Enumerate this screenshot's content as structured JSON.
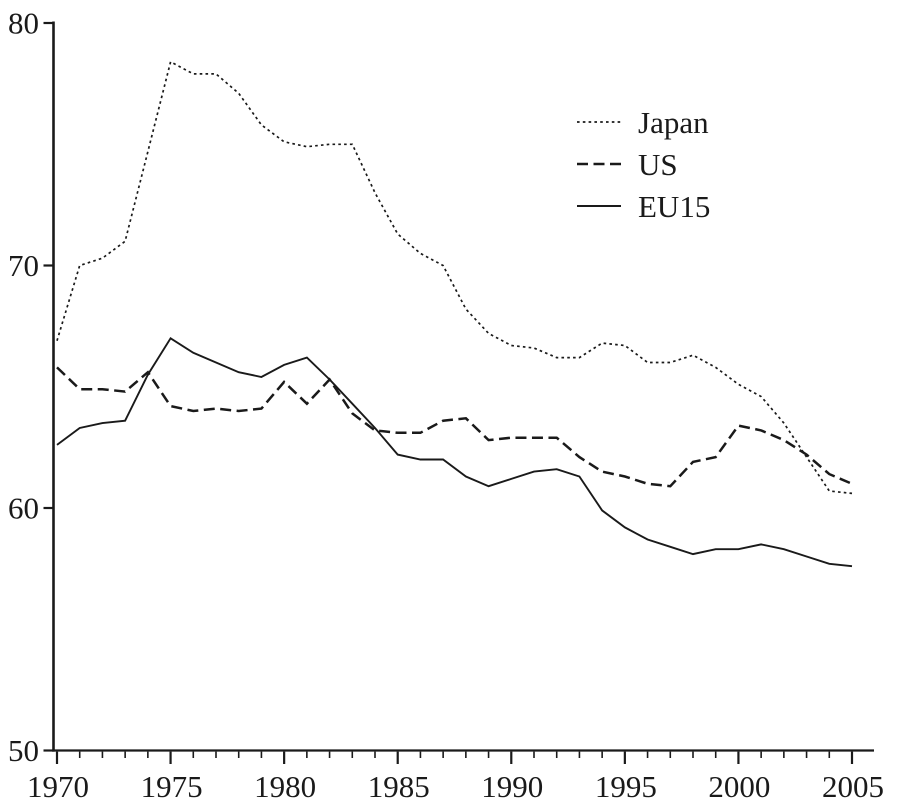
{
  "figure": {
    "background_color": "#ffffff",
    "ink_color": "#1a1a1a"
  },
  "chart_data": {
    "type": "line",
    "title": "",
    "xlabel": "",
    "ylabel": "",
    "grid": false,
    "legend_position": "upper-right-inside",
    "xlim": [
      1970,
      2005
    ],
    "ylim": [
      50,
      80
    ],
    "y_ticks": [
      50,
      60,
      70,
      80
    ],
    "y_tick_labels": [
      "50",
      "60",
      "70",
      "80"
    ],
    "x_major_ticks": [
      1970,
      1975,
      1980,
      1985,
      1990,
      1995,
      2000,
      2005
    ],
    "x_tick_labels": [
      "1970",
      "1975",
      "1980",
      "1985",
      "1990",
      "1995",
      "2000",
      "2005"
    ],
    "x": [
      1970,
      1971,
      1972,
      1973,
      1974,
      1975,
      1976,
      1977,
      1978,
      1979,
      1980,
      1981,
      1982,
      1983,
      1984,
      1985,
      1986,
      1987,
      1988,
      1989,
      1990,
      1991,
      1992,
      1993,
      1994,
      1995,
      1996,
      1997,
      1998,
      1999,
      2000,
      2001,
      2002,
      2003,
      2004,
      2005
    ],
    "series": [
      {
        "name": "Japan",
        "line_style": "dotted",
        "color": "#1a1a1a",
        "values": [
          66.9,
          70.0,
          70.3,
          71.0,
          74.7,
          78.4,
          77.9,
          77.9,
          77.1,
          75.8,
          75.1,
          74.9,
          75.0,
          75.0,
          73.0,
          71.3,
          70.5,
          70.0,
          68.2,
          67.2,
          66.7,
          66.6,
          66.2,
          66.2,
          66.8,
          66.7,
          66.0,
          66.0,
          66.3,
          65.8,
          65.1,
          64.6,
          63.5,
          62.1,
          60.7,
          60.6
        ]
      },
      {
        "name": "US",
        "line_style": "dashed",
        "color": "#1a1a1a",
        "values": [
          65.8,
          64.9,
          64.9,
          64.8,
          65.6,
          64.2,
          64.0,
          64.1,
          64.0,
          64.1,
          65.2,
          64.3,
          65.3,
          63.9,
          63.2,
          63.1,
          63.1,
          63.6,
          63.7,
          62.8,
          62.9,
          62.9,
          62.9,
          62.1,
          61.5,
          61.3,
          61.0,
          60.9,
          61.9,
          62.1,
          63.4,
          63.2,
          62.8,
          62.2,
          61.4,
          61.0
        ]
      },
      {
        "name": "EU15",
        "line_style": "solid",
        "color": "#1a1a1a",
        "values": [
          62.6,
          63.3,
          63.5,
          63.6,
          65.5,
          67.0,
          66.4,
          66.0,
          65.6,
          65.4,
          65.9,
          66.2,
          65.3,
          64.3,
          63.3,
          62.2,
          62.0,
          62.0,
          61.3,
          60.9,
          61.2,
          61.5,
          61.6,
          61.3,
          59.9,
          59.2,
          58.7,
          58.4,
          58.1,
          58.3,
          58.3,
          58.5,
          58.3,
          58.0,
          57.7,
          57.6
        ]
      }
    ]
  }
}
